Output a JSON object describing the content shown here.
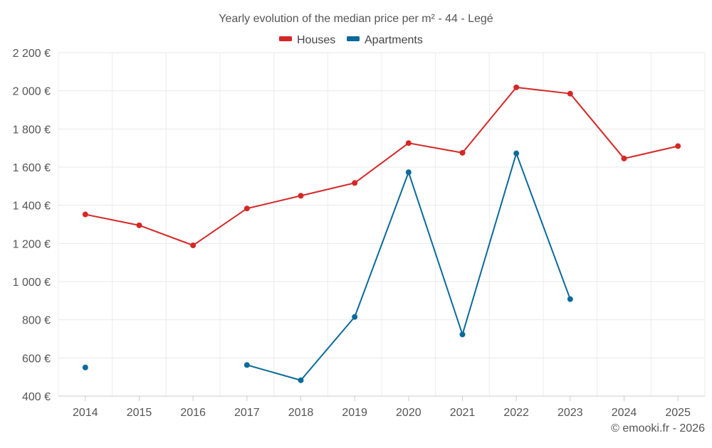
{
  "chart_data": {
    "type": "line",
    "title": "Yearly evolution of the median price per m² - 44 - Legé",
    "categories": [
      "2014",
      "2015",
      "2016",
      "2017",
      "2018",
      "2019",
      "2020",
      "2021",
      "2022",
      "2023",
      "2024",
      "2025"
    ],
    "series": [
      {
        "name": "Houses",
        "color": "#d62728",
        "values": [
          1352,
          1295,
          1190,
          1383,
          1450,
          1517,
          1726,
          1675,
          2018,
          1985,
          1645,
          1710
        ]
      },
      {
        "name": "Apartments",
        "color": "#0b6a9a",
        "values": [
          550,
          null,
          null,
          563,
          483,
          815,
          1573,
          723,
          1672,
          908,
          null,
          null
        ]
      }
    ],
    "ylim": [
      400,
      2200
    ],
    "yticks": [
      400,
      600,
      800,
      1000,
      1200,
      1400,
      1600,
      1800,
      2000,
      2200
    ],
    "ytick_labels": [
      "400 €",
      "600 €",
      "800 €",
      "1 000 €",
      "1 200 €",
      "1 400 €",
      "1 600 €",
      "1 800 €",
      "2 000 €",
      "2 200 €"
    ],
    "grid": true,
    "legend_position": "top-center",
    "credit": "© emooki.fr - 2026"
  }
}
